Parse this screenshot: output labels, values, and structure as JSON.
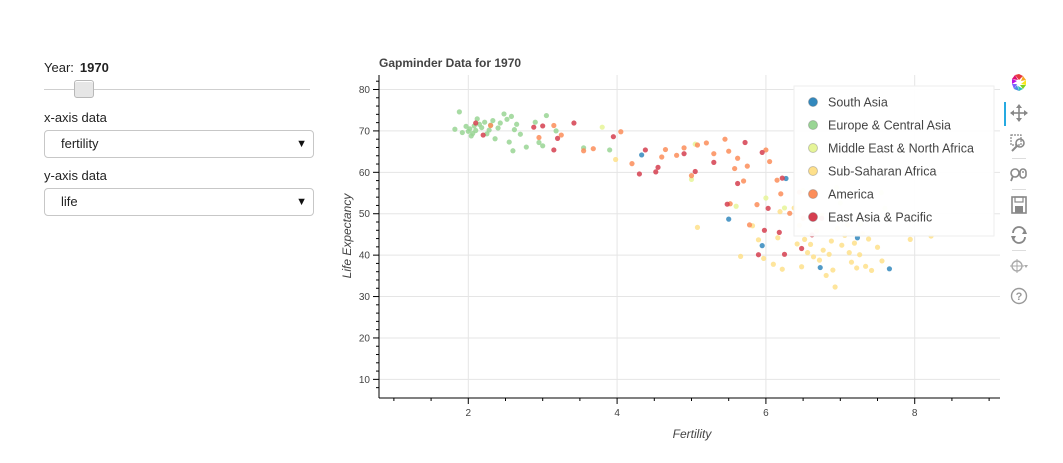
{
  "widgets": {
    "year_label": "Year:",
    "year_value": "1970",
    "year_slider": {
      "min": 1964,
      "max": 2013,
      "value": 1970
    },
    "x_label": "x-axis data",
    "x_value": "fertility",
    "y_label": "y-axis data",
    "y_value": "life"
  },
  "toolbar": {
    "tools": [
      "bokeh-logo-icon",
      "pan-icon",
      "box-zoom-icon",
      "wheel-zoom-icon",
      "save-icon",
      "reset-icon",
      "hover-icon",
      "help-icon"
    ],
    "active": "pan-icon"
  },
  "chart_data": {
    "type": "scatter",
    "title": "Gapminder Data for 1970",
    "xlabel": "Fertility",
    "ylabel": "Life Expectancy",
    "xlim": [
      0.8,
      9.2
    ],
    "ylim": [
      5.5,
      83.5
    ],
    "xticks": [
      2,
      4,
      6,
      8
    ],
    "yticks": [
      10,
      20,
      30,
      40,
      50,
      60,
      70,
      80
    ],
    "grid": true,
    "legend_position": "top-right",
    "series": [
      {
        "name": "South Asia",
        "color": "#3288bd",
        "points": [
          [
            4.33,
            64.2
          ],
          [
            5.5,
            48.7
          ],
          [
            5.95,
            42.3
          ],
          [
            6.73,
            37.0
          ],
          [
            7.23,
            44.2
          ],
          [
            7.66,
            36.7
          ],
          [
            6.27,
            58.5
          ]
        ]
      },
      {
        "name": "Europe & Central Asia",
        "color": "#99d594",
        "points": [
          [
            1.82,
            70.4
          ],
          [
            1.88,
            74.6
          ],
          [
            1.92,
            69.6
          ],
          [
            1.97,
            71.1
          ],
          [
            2.0,
            69.9
          ],
          [
            2.02,
            70.5
          ],
          [
            2.04,
            68.8
          ],
          [
            2.06,
            69.4
          ],
          [
            2.08,
            71.2
          ],
          [
            2.1,
            70.1
          ],
          [
            2.12,
            72.9
          ],
          [
            2.15,
            71.6
          ],
          [
            2.18,
            70.8
          ],
          [
            2.22,
            72.1
          ],
          [
            2.25,
            69.3
          ],
          [
            2.28,
            70.2
          ],
          [
            2.3,
            71.4
          ],
          [
            2.33,
            72.5
          ],
          [
            2.36,
            68.1
          ],
          [
            2.4,
            70.7
          ],
          [
            2.43,
            71.9
          ],
          [
            2.48,
            74.1
          ],
          [
            2.52,
            72.8
          ],
          [
            2.55,
            67.3
          ],
          [
            2.58,
            73.5
          ],
          [
            2.62,
            70.3
          ],
          [
            2.65,
            71.6
          ],
          [
            2.7,
            69.2
          ],
          [
            2.78,
            66.1
          ],
          [
            2.9,
            72.1
          ],
          [
            2.95,
            67.2
          ],
          [
            3.0,
            66.4
          ],
          [
            3.05,
            73.7
          ],
          [
            3.18,
            70.0
          ],
          [
            3.55,
            65.9
          ],
          [
            3.9,
            65.4
          ],
          [
            2.6,
            65.2
          ]
        ]
      },
      {
        "name": "Middle East & North Africa",
        "color": "#e6f598",
        "points": [
          [
            3.8,
            70.9
          ],
          [
            5.05,
            66.8
          ],
          [
            5.0,
            58.3
          ],
          [
            5.6,
            51.8
          ],
          [
            6.0,
            53.8
          ],
          [
            6.25,
            51.4
          ],
          [
            6.5,
            55.6
          ],
          [
            7.0,
            52.6
          ],
          [
            7.27,
            47.5
          ],
          [
            7.6,
            51.3
          ],
          [
            6.95,
            56.3
          ],
          [
            7.55,
            55.1
          ]
        ]
      },
      {
        "name": "Sub-Saharan Africa",
        "color": "#fee08b",
        "points": [
          [
            3.98,
            63.1
          ],
          [
            5.08,
            46.7
          ],
          [
            5.66,
            39.7
          ],
          [
            5.82,
            47.1
          ],
          [
            5.9,
            43.7
          ],
          [
            5.97,
            39.2
          ],
          [
            6.1,
            37.8
          ],
          [
            6.16,
            44.2
          ],
          [
            6.19,
            50.5
          ],
          [
            6.22,
            36.6
          ],
          [
            6.38,
            51.4
          ],
          [
            6.42,
            42.7
          ],
          [
            6.45,
            47.2
          ],
          [
            6.48,
            37.2
          ],
          [
            6.52,
            43.8
          ],
          [
            6.56,
            40.6
          ],
          [
            6.6,
            42.6
          ],
          [
            6.64,
            39.6
          ],
          [
            6.68,
            45.8
          ],
          [
            6.72,
            38.8
          ],
          [
            6.77,
            41.2
          ],
          [
            6.81,
            35.1
          ],
          [
            6.85,
            40.2
          ],
          [
            6.88,
            43.4
          ],
          [
            6.9,
            36.4
          ],
          [
            6.93,
            32.3
          ],
          [
            6.96,
            46.5
          ],
          [
            7.02,
            42.4
          ],
          [
            7.06,
            44.8
          ],
          [
            7.12,
            40.6
          ],
          [
            7.15,
            38.3
          ],
          [
            7.19,
            42.9
          ],
          [
            7.22,
            36.9
          ],
          [
            7.26,
            40.1
          ],
          [
            7.3,
            45.2
          ],
          [
            7.34,
            37.3
          ],
          [
            7.38,
            43.9
          ],
          [
            7.42,
            36.3
          ],
          [
            7.5,
            41.9
          ],
          [
            7.56,
            38.6
          ],
          [
            7.94,
            43.8
          ],
          [
            8.22,
            44.6
          ],
          [
            7.1,
            47.3
          ],
          [
            6.75,
            49.6
          ]
        ]
      },
      {
        "name": "America",
        "color": "#fc8d59",
        "points": [
          [
            2.3,
            71.3
          ],
          [
            2.95,
            68.4
          ],
          [
            3.15,
            71.3
          ],
          [
            3.25,
            69.0
          ],
          [
            3.55,
            65.2
          ],
          [
            3.68,
            65.7
          ],
          [
            4.05,
            69.8
          ],
          [
            4.2,
            62.1
          ],
          [
            4.6,
            63.7
          ],
          [
            4.65,
            65.5
          ],
          [
            4.8,
            64.1
          ],
          [
            4.9,
            65.9
          ],
          [
            5.0,
            59.2
          ],
          [
            5.08,
            66.6
          ],
          [
            5.2,
            67.1
          ],
          [
            5.3,
            64.5
          ],
          [
            5.45,
            68.0
          ],
          [
            5.5,
            65.1
          ],
          [
            5.58,
            60.9
          ],
          [
            5.62,
            63.4
          ],
          [
            5.7,
            57.9
          ],
          [
            5.75,
            61.5
          ],
          [
            5.78,
            47.3
          ],
          [
            5.88,
            52.2
          ],
          [
            6.0,
            65.4
          ],
          [
            6.05,
            62.6
          ],
          [
            6.15,
            58.1
          ],
          [
            6.32,
            50.1
          ],
          [
            6.45,
            55.2
          ],
          [
            6.5,
            48.9
          ],
          [
            5.52,
            52.4
          ],
          [
            6.2,
            54.8
          ]
        ]
      },
      {
        "name": "East Asia & Pacific",
        "color": "#d53e4f",
        "points": [
          [
            2.1,
            71.9
          ],
          [
            2.2,
            69.0
          ],
          [
            2.88,
            70.9
          ],
          [
            3.0,
            71.2
          ],
          [
            3.15,
            65.4
          ],
          [
            3.2,
            68.2
          ],
          [
            3.42,
            71.9
          ],
          [
            3.95,
            68.6
          ],
          [
            4.3,
            59.6
          ],
          [
            4.38,
            65.4
          ],
          [
            4.52,
            60.1
          ],
          [
            4.55,
            61.2
          ],
          [
            4.9,
            64.5
          ],
          [
            5.05,
            60.2
          ],
          [
            5.3,
            62.4
          ],
          [
            5.48,
            52.3
          ],
          [
            5.62,
            57.3
          ],
          [
            5.72,
            67.2
          ],
          [
            5.95,
            64.8
          ],
          [
            5.98,
            46.0
          ],
          [
            6.03,
            51.3
          ],
          [
            6.18,
            45.5
          ],
          [
            6.22,
            58.6
          ],
          [
            6.25,
            40.2
          ],
          [
            6.48,
            41.6
          ],
          [
            6.62,
            44.9
          ],
          [
            6.75,
            48.9
          ],
          [
            5.9,
            40.1
          ]
        ]
      }
    ]
  }
}
